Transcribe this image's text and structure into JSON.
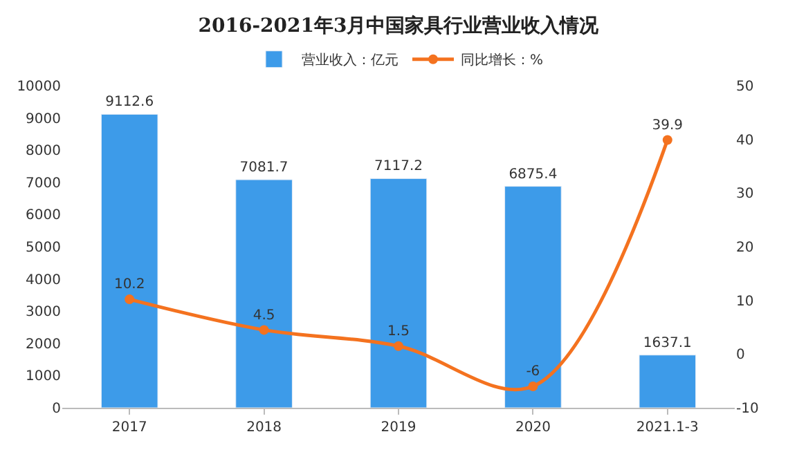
{
  "chart_data": {
    "type": "bar",
    "title": "2016-2021年3月中国家具行业营业收入情况",
    "categories": [
      "2017",
      "2018",
      "2019",
      "2020",
      "2021.1-3"
    ],
    "series": [
      {
        "name": "营业收入：亿元",
        "color": "#3d9be9",
        "values": [
          9112.6,
          7081.7,
          7117.2,
          6875.4,
          1637.1
        ]
      },
      {
        "name": "同比增长：%",
        "type": "line",
        "axis": "y2",
        "color": "#f4721f",
        "values": [
          10.2,
          4.5,
          1.5,
          -6,
          39.9
        ]
      }
    ],
    "ylim": [
      0,
      10000
    ],
    "yticks": [
      0,
      1000,
      2000,
      3000,
      4000,
      5000,
      6000,
      7000,
      8000,
      9000,
      10000
    ],
    "y2lim": [
      -10,
      50
    ],
    "y2ticks": [
      -10,
      0,
      10,
      20,
      30,
      40,
      50
    ],
    "data_labels": true,
    "legend": "top",
    "marker": "circle"
  }
}
